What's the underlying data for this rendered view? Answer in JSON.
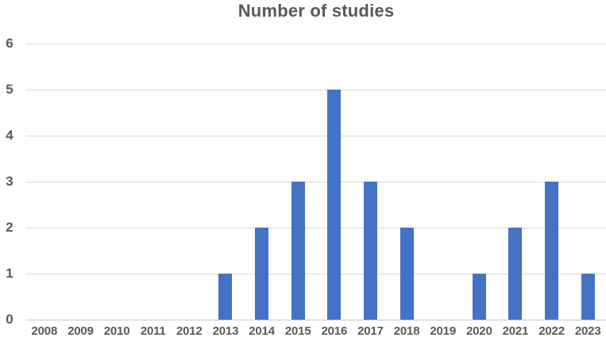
{
  "chart_data": {
    "type": "bar",
    "title": "Number of studies",
    "categories": [
      "2008",
      "2009",
      "2010",
      "2011",
      "2012",
      "2013",
      "2014",
      "2015",
      "2016",
      "2017",
      "2018",
      "2019",
      "2020",
      "2021",
      "2022",
      "2023"
    ],
    "values": [
      0,
      0,
      0,
      0,
      0,
      1,
      2,
      3,
      5,
      3,
      2,
      0,
      1,
      2,
      3,
      1
    ],
    "xlabel": "",
    "ylabel": "",
    "ylim": [
      0,
      6
    ],
    "y_ticks": [
      0,
      1,
      2,
      3,
      4,
      5,
      6
    ],
    "grid": "horizontal",
    "legend": "none",
    "colors": {
      "bar": "#4472C4",
      "gridline": "#D9D9D9",
      "axis_line": "#C9C9C9",
      "text": "#595959",
      "background": "#FFFFFF"
    }
  }
}
